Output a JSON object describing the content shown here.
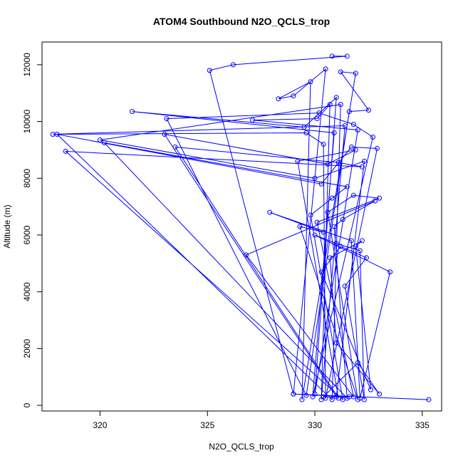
{
  "chart_data": {
    "type": "line",
    "title": "ATOM4 Southbound N2O_QCLS_trop",
    "xlabel": "N2O_QCLS_trop",
    "ylabel": "Altitude (m)",
    "xlim": [
      317.3,
      335.9
    ],
    "ylim": [
      -200,
      12800
    ],
    "xticks": [
      "320",
      "325",
      "330",
      "335"
    ],
    "yticks": [
      "0",
      "2000",
      "4000",
      "6000",
      "8000",
      "10000",
      "12000"
    ],
    "series_color": "#0000ff",
    "marker": "open-circle",
    "grid": false,
    "series": [
      {
        "x": [
          330.8,
          331.5,
          326.2,
          325.1,
          330.5,
          329.0,
          328.3,
          329.8,
          331.9,
          331.2,
          332.5,
          331.6,
          323.1,
          330.2,
          331.8,
          332.7,
          330.9,
          321.5,
          329.5,
          331.0,
          332.0,
          327.1,
          330.1,
          330.7,
          331.4,
          317.8,
          329.6,
          330.4,
          332.9,
          331.7,
          330.3,
          318.0,
          331.2,
          320.0,
          330.0,
          332.3,
          323.0,
          330.6,
          331.9,
          329.2,
          323.5,
          331.1,
          332.2,
          318.4,
          329.8,
          330.8,
          331.5,
          320.2,
          330.9,
          331.3,
          332.8,
          326.8,
          330.1,
          333.0,
          331.8,
          330.6,
          329.3,
          330.4,
          327.9,
          331.7,
          333.5,
          330.0,
          331.0,
          332.1,
          331.4,
          332.4,
          331.2,
          330.3,
          331.9,
          332.2,
          330.7,
          331.0,
          332.0,
          330.4,
          331.6,
          329.0,
          335.3
        ],
        "y": [
          12300,
          12300,
          12000,
          11800,
          11850,
          10900,
          10800,
          11400,
          11700,
          11750,
          10400,
          10350,
          10100,
          10300,
          9900,
          9450,
          9600,
          10350,
          9800,
          10850,
          9700,
          10050,
          10100,
          10600,
          9850,
          9550,
          9600,
          9200,
          9050,
          9100,
          7800,
          9550,
          10600,
          9350,
          8000,
          8600,
          9550,
          8500,
          9000,
          8600,
          9100,
          8550,
          8400,
          8950,
          6700,
          7300,
          7700,
          9250,
          6300,
          6550,
          7200,
          5300,
          6450,
          7300,
          7400,
          6800,
          6300,
          6100,
          6800,
          5800,
          4700,
          6000,
          5700,
          5450,
          4200,
          5200,
          5600,
          4700,
          5600,
          5800,
          5200,
          2200,
          1500,
          300,
          300,
          400,
          200
        ],
        "extra_low_points_x": [
          329.0,
          329.4,
          329.6,
          329.9,
          330.0,
          330.3,
          330.5,
          330.8,
          331.0,
          331.1,
          331.3,
          331.5,
          331.8,
          332.0,
          332.1,
          332.3,
          332.6,
          333.0
        ],
        "extra_low_points_y": [
          400,
          200,
          350,
          300,
          400,
          200,
          250,
          200,
          300,
          250,
          200,
          250,
          300,
          200,
          250,
          200,
          550,
          400
        ]
      }
    ]
  }
}
